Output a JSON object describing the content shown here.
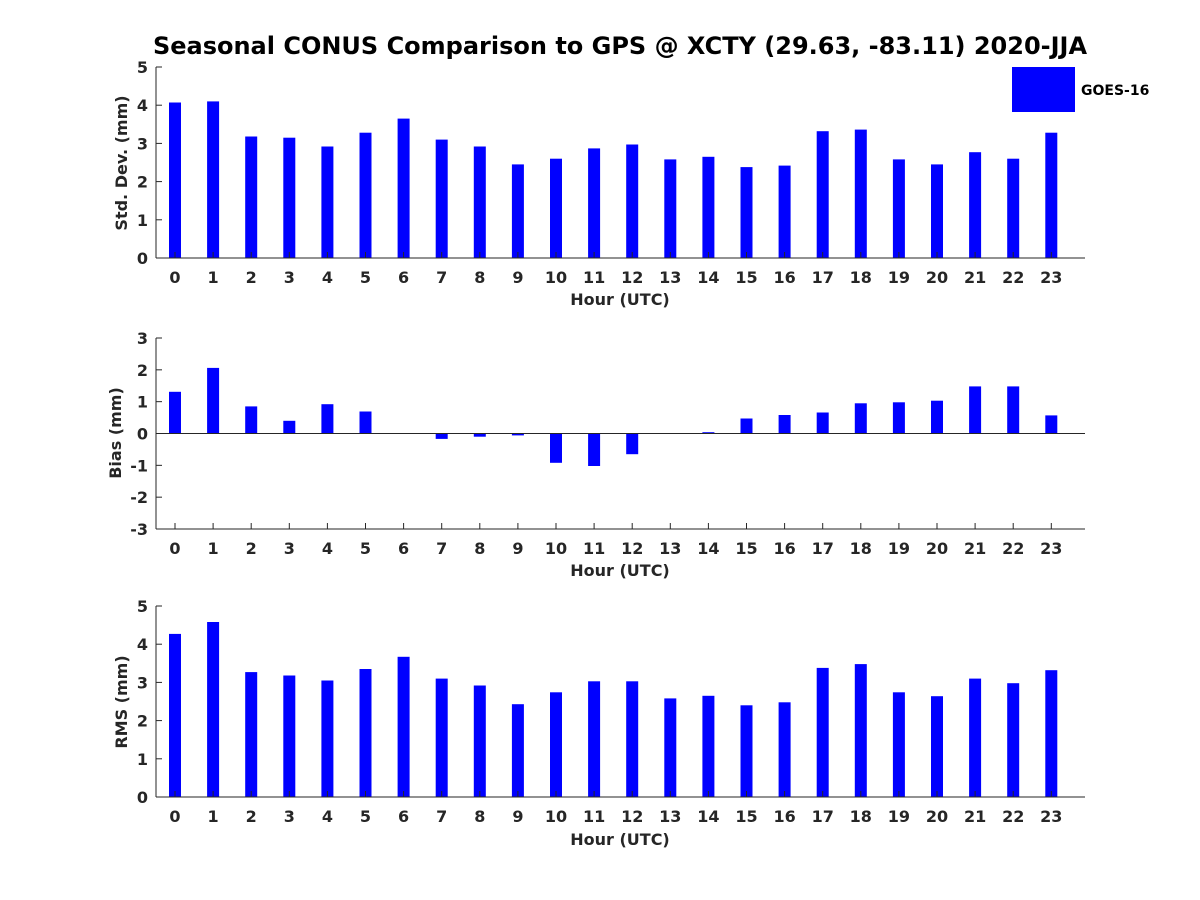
{
  "chart_data": {
    "type": "bar",
    "title": "Seasonal CONUS Comparison to GPS @ XCTY (29.63, -83.11) 2020-JJA",
    "legend": {
      "label": "GOES-16",
      "placement": "top-right"
    },
    "color": "#0000ff",
    "grid": false,
    "panels": [
      {
        "ylabel": "Std. Dev. (mm)",
        "xlabel": "Hour (UTC)",
        "ylim": [
          0,
          5
        ],
        "yticks": [
          "0",
          "1",
          "2",
          "3",
          "4",
          "5"
        ],
        "categories": [
          "0",
          "1",
          "2",
          "3",
          "4",
          "5",
          "6",
          "7",
          "8",
          "9",
          "10",
          "11",
          "12",
          "13",
          "14",
          "15",
          "16",
          "17",
          "18",
          "19",
          "20",
          "21",
          "22",
          "23"
        ],
        "series": [
          {
            "name": "GOES-16",
            "values": [
              4.07,
              4.1,
              3.18,
              3.15,
              2.92,
              3.28,
              3.65,
              3.1,
              2.92,
              2.45,
              2.6,
              2.87,
              2.97,
              2.58,
              2.65,
              2.38,
              2.42,
              3.32,
              3.36,
              2.58,
              2.45,
              2.77,
              2.6,
              3.28
            ]
          }
        ]
      },
      {
        "ylabel": "Bias (mm)",
        "xlabel": "Hour (UTC)",
        "ylim": [
          -3,
          3
        ],
        "yticks": [
          "-3",
          "-2",
          "-1",
          "0",
          "1",
          "2",
          "3"
        ],
        "categories": [
          "0",
          "1",
          "2",
          "3",
          "4",
          "5",
          "6",
          "7",
          "8",
          "9",
          "10",
          "11",
          "12",
          "13",
          "14",
          "15",
          "16",
          "17",
          "18",
          "19",
          "20",
          "21",
          "22",
          "23"
        ],
        "series": [
          {
            "name": "GOES-16",
            "values": [
              1.31,
              2.06,
              0.85,
              0.4,
              0.92,
              0.69,
              0.0,
              -0.17,
              -0.1,
              -0.06,
              -0.92,
              -1.02,
              -0.65,
              0.0,
              0.04,
              0.47,
              0.58,
              0.66,
              0.95,
              0.98,
              1.03,
              1.48,
              1.48,
              0.57
            ]
          }
        ]
      },
      {
        "ylabel": "RMS (mm)",
        "xlabel": "Hour (UTC)",
        "ylim": [
          0,
          5
        ],
        "yticks": [
          "0",
          "1",
          "2",
          "3",
          "4",
          "5"
        ],
        "categories": [
          "0",
          "1",
          "2",
          "3",
          "4",
          "5",
          "6",
          "7",
          "8",
          "9",
          "10",
          "11",
          "12",
          "13",
          "14",
          "15",
          "16",
          "17",
          "18",
          "19",
          "20",
          "21",
          "22",
          "23"
        ],
        "series": [
          {
            "name": "GOES-16",
            "values": [
              4.27,
              4.58,
              3.27,
              3.18,
              3.05,
              3.35,
              3.67,
              3.1,
              2.92,
              2.43,
              2.74,
              3.03,
              3.03,
              2.58,
              2.65,
              2.4,
              2.48,
              3.38,
              3.48,
              2.74,
              2.64,
              3.1,
              2.98,
              3.32
            ]
          }
        ]
      }
    ]
  }
}
